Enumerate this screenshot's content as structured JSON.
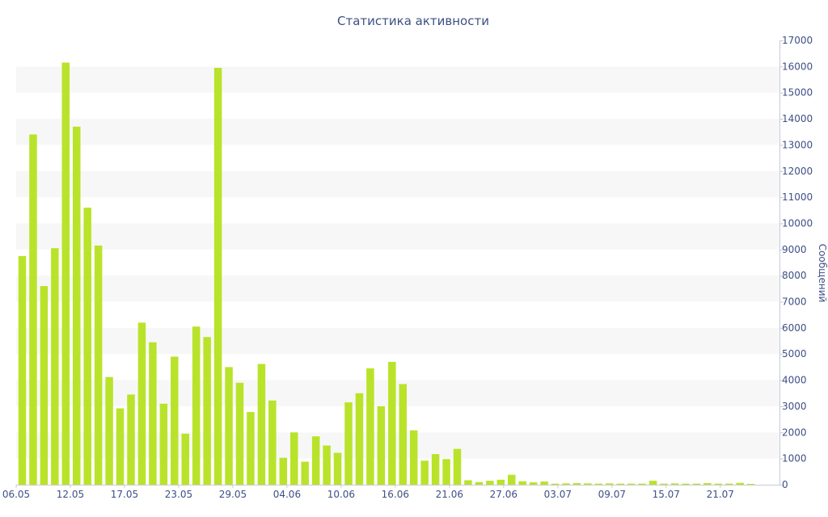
{
  "chart_data": {
    "type": "bar",
    "title": "Статистика активности",
    "xlabel": "",
    "ylabel": "Сообщений",
    "y_axis_position": "right",
    "ylim": [
      0,
      17000
    ],
    "y_ticks": [
      0,
      1000,
      2000,
      3000,
      4000,
      5000,
      6000,
      7000,
      8000,
      9000,
      10000,
      11000,
      12000,
      13000,
      14000,
      15000,
      16000,
      17000
    ],
    "x_tick_labels": [
      "06.05",
      "12.05",
      "17.05",
      "23.05",
      "29.05",
      "04.06",
      "10.06",
      "16.06",
      "21.06",
      "27.06",
      "03.07",
      "09.07",
      "15.07",
      "21.07"
    ],
    "grid": "alternating horizontal bands",
    "bar_color": "#b9e32a",
    "band_color": "#f7f7f7",
    "text_color": "#3e4f84",
    "values": [
      8750,
      13400,
      7600,
      9050,
      16150,
      13700,
      10600,
      9150,
      4120,
      2920,
      3450,
      6200,
      5450,
      3100,
      4900,
      1950,
      6050,
      5650,
      15950,
      4500,
      3900,
      2780,
      4620,
      3220,
      1030,
      2000,
      880,
      1850,
      1500,
      1220,
      3150,
      3500,
      4450,
      3000,
      4700,
      3850,
      2080,
      920,
      1170,
      980,
      1370,
      170,
      100,
      150,
      190,
      380,
      130,
      90,
      120,
      40,
      50,
      60,
      50,
      40,
      50,
      40,
      40,
      40,
      150,
      40,
      50,
      40,
      40,
      60,
      40,
      40,
      70,
      30
    ]
  }
}
